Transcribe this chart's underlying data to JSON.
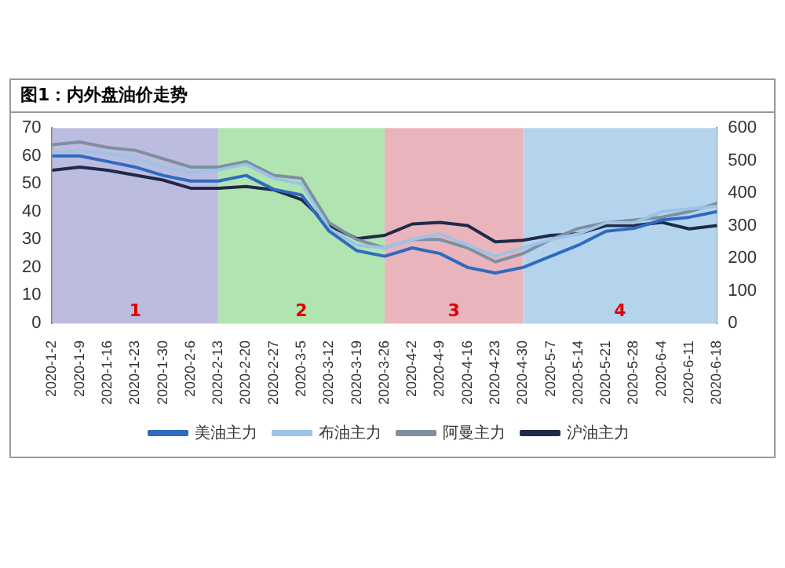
{
  "chart_data": {
    "type": "line",
    "title": "图1：内外盘油价走势",
    "categories": [
      "2020-1-2",
      "2020-1-9",
      "2020-1-16",
      "2020-1-23",
      "2020-1-30",
      "2020-2-6",
      "2020-2-13",
      "2020-2-20",
      "2020-2-27",
      "2020-3-5",
      "2020-3-12",
      "2020-3-19",
      "2020-3-26",
      "2020-4-2",
      "2020-4-9",
      "2020-4-16",
      "2020-4-23",
      "2020-4-30",
      "2020-5-7",
      "2020-5-14",
      "2020-5-21",
      "2020-5-28",
      "2020-6-4",
      "2020-6-11",
      "2020-6-18"
    ],
    "series": [
      {
        "name": "美油主力",
        "color": "#2e6bbf",
        "values": [
          60,
          60,
          58,
          56,
          53,
          51,
          51,
          53,
          48,
          46,
          33,
          26,
          24,
          27,
          25,
          20,
          18,
          20,
          24,
          28,
          33,
          34,
          37,
          38,
          40
        ]
      },
      {
        "name": "布油主力",
        "color": "#9dc3e6",
        "values": [
          61,
          62,
          61,
          59,
          56,
          54,
          55,
          57,
          52,
          50,
          34,
          28,
          27,
          30,
          32,
          28,
          24,
          27,
          30,
          32,
          36,
          36,
          40,
          41,
          42
        ]
      },
      {
        "name": "阿曼主力",
        "color": "#7f8fa0",
        "values": [
          64,
          65,
          63,
          62,
          59,
          56,
          56,
          58,
          53,
          52,
          36,
          30,
          27,
          30,
          30,
          27,
          22,
          25,
          30,
          34,
          36,
          37,
          38,
          40,
          43
        ]
      },
      {
        "name": "沪油主力",
        "color": "#1f2a4a",
        "axis": "y2",
        "values": [
          470,
          480,
          470,
          455,
          440,
          415,
          415,
          420,
          410,
          380,
          300,
          260,
          270,
          305,
          310,
          300,
          250,
          255,
          270,
          275,
          300,
          300,
          310,
          290,
          300
        ]
      }
    ],
    "ylim": [
      0,
      70
    ],
    "yticks": [
      0,
      10,
      20,
      30,
      40,
      50,
      60,
      70
    ],
    "y2lim": [
      0,
      600
    ],
    "y2ticks": [
      0,
      100,
      200,
      300,
      400,
      500,
      600
    ],
    "bands": [
      {
        "axis": "x",
        "from": "2020-1-2",
        "to": "2020-2-13",
        "label": "1",
        "color": "#bcbce0"
      },
      {
        "axis": "x",
        "from": "2020-2-13",
        "to": "2020-3-26",
        "label": "2",
        "color": "#b0e4b0"
      },
      {
        "axis": "x",
        "from": "2020-3-26",
        "to": "2020-4-30",
        "label": "3",
        "color": "#eab4bc"
      },
      {
        "axis": "x",
        "from": "2020-4-30",
        "to": "2020-6-18",
        "label": "4",
        "color": "#b4d4ee"
      }
    ],
    "legend": "bottom",
    "grid": false,
    "marker": "none",
    "line_style": "solid"
  }
}
